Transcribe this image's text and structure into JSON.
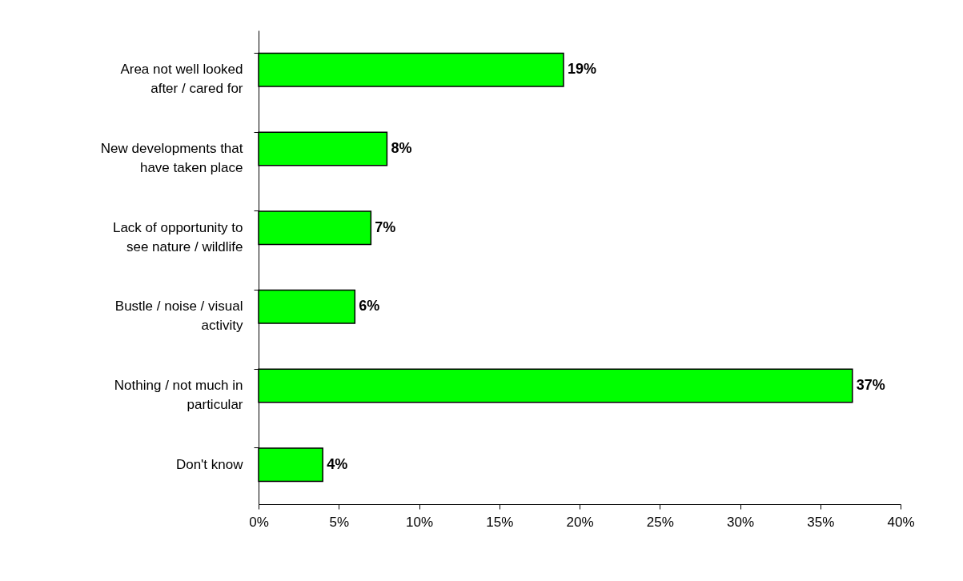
{
  "chart_data": {
    "type": "bar",
    "orientation": "horizontal",
    "categories": [
      "Area not well looked after / cared for",
      "New developments that have taken place",
      "Lack of opportunity to see nature / wildlife",
      "Bustle  / noise / visual activity",
      "Nothing / not much in particular",
      "Don't know"
    ],
    "values": [
      19,
      8,
      7,
      6,
      37,
      4
    ],
    "value_labels": [
      "19%",
      "8%",
      "7%",
      "6%",
      "37%",
      "4%"
    ],
    "color": "#00ff00",
    "xlim": [
      0,
      40
    ],
    "xticks": [
      {
        "value": 0,
        "label": "0%"
      },
      {
        "value": 5,
        "label": "5%"
      },
      {
        "value": 10,
        "label": "10%"
      },
      {
        "value": 15,
        "label": "15%"
      },
      {
        "value": 20,
        "label": "20%"
      },
      {
        "value": 25,
        "label": "25%"
      },
      {
        "value": 30,
        "label": "30%"
      },
      {
        "value": 35,
        "label": "35%"
      },
      {
        "value": 40,
        "label": "40%"
      }
    ],
    "grid": false
  }
}
